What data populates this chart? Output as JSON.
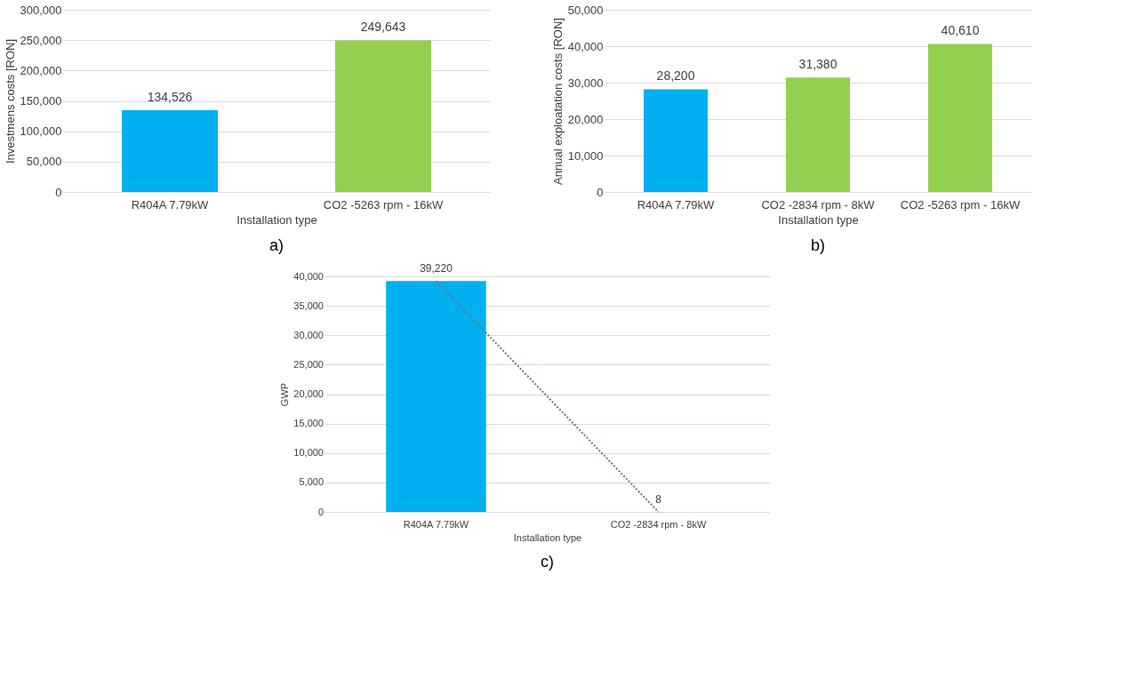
{
  "chart_data": [
    {
      "type": "bar",
      "xlabel": "Installation type",
      "ylabel": "Investmens costs [RON]",
      "categories": [
        "R404A 7.79kW",
        "CO2 -5263 rpm - 16kW"
      ],
      "series": [
        {
          "values": [
            134526,
            249643
          ],
          "value_labels": [
            "134,526",
            "249,643"
          ],
          "colors": [
            "#00b0f0",
            "#92d050"
          ]
        }
      ],
      "ylim": [
        0,
        300000
      ],
      "yticks": [
        {
          "value": 0,
          "label": "0"
        },
        {
          "value": 50000,
          "label": "50,000"
        },
        {
          "value": 100000,
          "label": "100,000"
        },
        {
          "value": 150000,
          "label": "150,000"
        },
        {
          "value": 200000,
          "label": "200,000"
        },
        {
          "value": 250000,
          "label": "250,000"
        },
        {
          "value": 300000,
          "label": "300,000"
        }
      ],
      "grid": "y",
      "annotations": [
        "a)"
      ]
    },
    {
      "type": "bar",
      "xlabel": "Installation type",
      "ylabel": "Annual exploatation costs [RON]",
      "categories": [
        "R404A 7.79kW",
        "CO2 -2834 rpm - 8kW",
        "CO2 -5263 rpm - 16kW"
      ],
      "series": [
        {
          "values": [
            28200,
            31380,
            40610
          ],
          "value_labels": [
            "28,200",
            "31,380",
            "40,610"
          ],
          "colors": [
            "#00b0f0",
            "#92d050",
            "#92d050"
          ]
        }
      ],
      "ylim": [
        0,
        50000
      ],
      "yticks": [
        {
          "value": 0,
          "label": "0"
        },
        {
          "value": 10000,
          "label": "10,000"
        },
        {
          "value": 20000,
          "label": "20,000"
        },
        {
          "value": 30000,
          "label": "30,000"
        },
        {
          "value": 40000,
          "label": "40,000"
        },
        {
          "value": 50000,
          "label": "50,000"
        }
      ],
      "grid": "y",
      "annotations": [
        "b)"
      ]
    },
    {
      "type": "bar",
      "xlabel": "Installation type",
      "ylabel": "GWP",
      "categories": [
        "R404A 7.79kW",
        "CO2 -2834 rpm - 8kW"
      ],
      "series": [
        {
          "values": [
            39220,
            8
          ],
          "value_labels": [
            "39,220",
            "8"
          ],
          "colors": [
            "#00b0f0",
            "#a6d72f"
          ]
        },
        {
          "type": "line",
          "values": [
            39220,
            8
          ],
          "color": "#5b7b8f",
          "line_style": "dotted",
          "marker": "none"
        }
      ],
      "ylim": [
        0,
        40000
      ],
      "yticks": [
        {
          "value": 0,
          "label": "0"
        },
        {
          "value": 5000,
          "label": "5,000"
        },
        {
          "value": 10000,
          "label": "10,000"
        },
        {
          "value": 15000,
          "label": "15,000"
        },
        {
          "value": 20000,
          "label": "20,000"
        },
        {
          "value": 25000,
          "label": "25,000"
        },
        {
          "value": 30000,
          "label": "30,000"
        },
        {
          "value": 35000,
          "label": "35,000"
        },
        {
          "value": 40000,
          "label": "40,000"
        }
      ],
      "grid": "y",
      "annotations": [
        "c)"
      ]
    }
  ]
}
